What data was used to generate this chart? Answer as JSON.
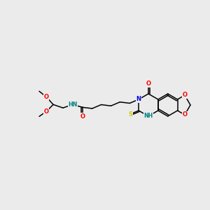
{
  "bg_color": "#ebebeb",
  "bond_color": "#000000",
  "atom_colors": {
    "O": "#ff0000",
    "N": "#0000ee",
    "S": "#cccc00",
    "NH_color": "#008080"
  },
  "figsize": [
    3.0,
    3.0
  ],
  "dpi": 100,
  "lfs": 6.0,
  "lw": 1.1
}
